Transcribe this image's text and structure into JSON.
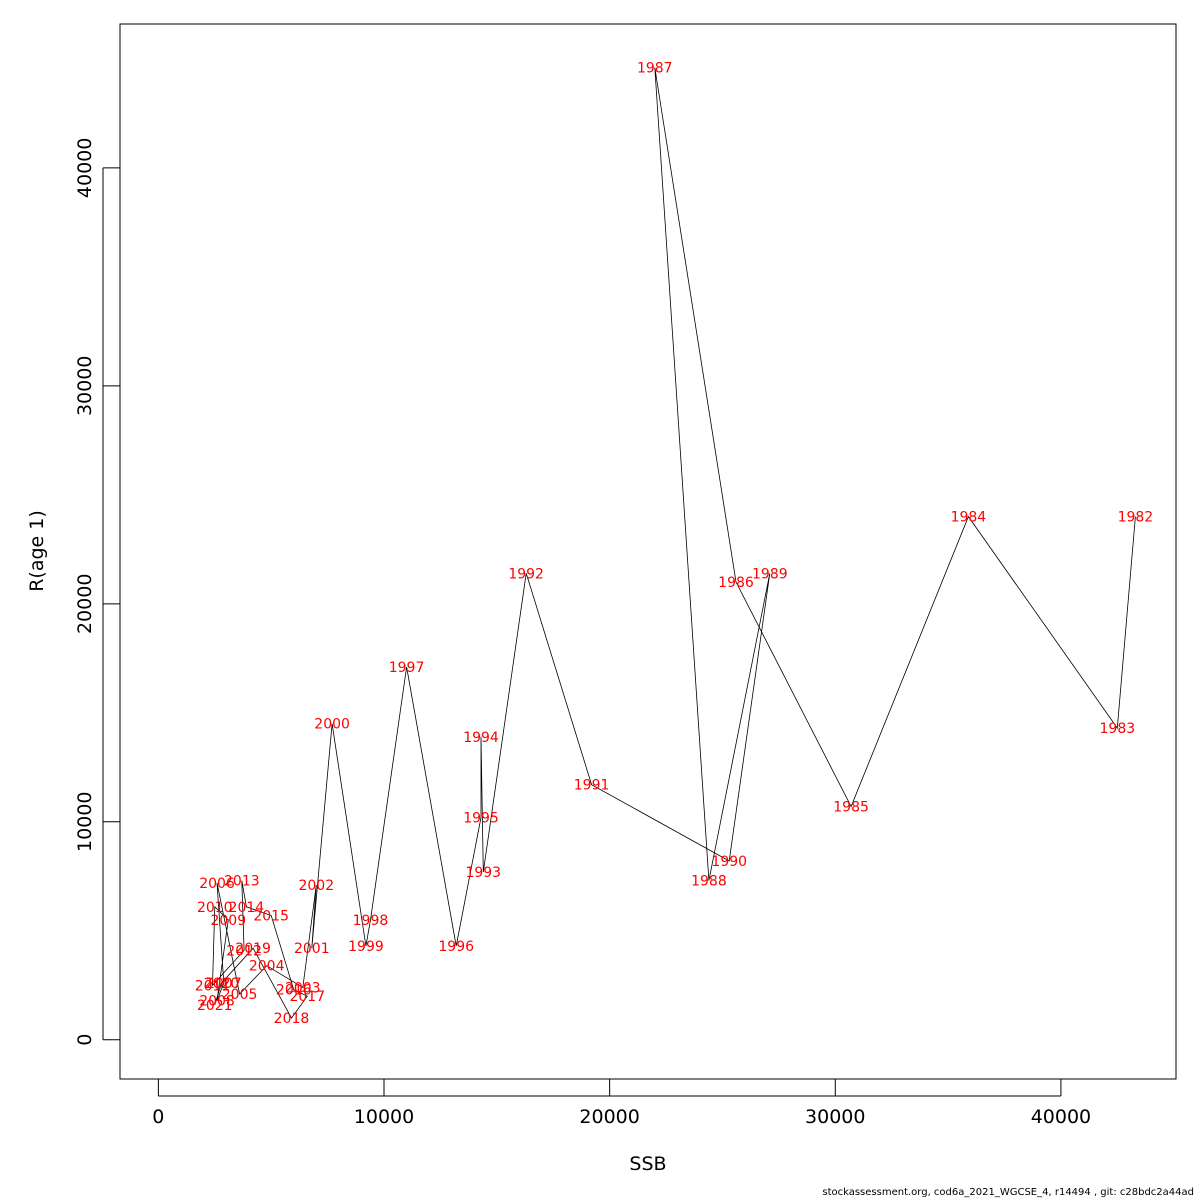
{
  "chart_data": {
    "type": "line",
    "title": "",
    "xlabel": "SSB",
    "ylabel": "R(age 1)",
    "xlim": [
      -1700,
      45100
    ],
    "ylim": [
      -1800,
      46600
    ],
    "xticks": [
      0,
      10000,
      20000,
      30000,
      40000
    ],
    "yticks": [
      0,
      10000,
      20000,
      30000,
      40000
    ],
    "grid": false,
    "label_color": "#ff0000",
    "line_color": "#000000",
    "points": [
      {
        "label": "1982",
        "x": 43300,
        "y": 24000
      },
      {
        "label": "1983",
        "x": 42500,
        "y": 14300
      },
      {
        "label": "1984",
        "x": 35900,
        "y": 24000
      },
      {
        "label": "1985",
        "x": 30700,
        "y": 10700
      },
      {
        "label": "1986",
        "x": 25600,
        "y": 21000
      },
      {
        "label": "1987",
        "x": 22000,
        "y": 44600
      },
      {
        "label": "1988",
        "x": 24400,
        "y": 7300
      },
      {
        "label": "1989",
        "x": 27100,
        "y": 21400
      },
      {
        "label": "1990",
        "x": 25300,
        "y": 8200
      },
      {
        "label": "1991",
        "x": 19200,
        "y": 11700
      },
      {
        "label": "1992",
        "x": 16300,
        "y": 21400
      },
      {
        "label": "1993",
        "x": 14400,
        "y": 7700
      },
      {
        "label": "1994",
        "x": 14300,
        "y": 13900
      },
      {
        "label": "1995",
        "x": 14300,
        "y": 10200
      },
      {
        "label": "1996",
        "x": 13200,
        "y": 4300
      },
      {
        "label": "1997",
        "x": 11000,
        "y": 17100
      },
      {
        "label": "1998",
        "x": 9400,
        "y": 5500
      },
      {
        "label": "1999",
        "x": 9200,
        "y": 4300
      },
      {
        "label": "2000",
        "x": 7700,
        "y": 14500
      },
      {
        "label": "2001",
        "x": 6800,
        "y": 4200
      },
      {
        "label": "2002",
        "x": 7000,
        "y": 7100
      },
      {
        "label": "2003",
        "x": 6400,
        "y": 2400
      },
      {
        "label": "2004",
        "x": 4800,
        "y": 3400
      },
      {
        "label": "2005",
        "x": 3600,
        "y": 2100
      },
      {
        "label": "2006",
        "x": 2600,
        "y": 7200
      },
      {
        "label": "2007",
        "x": 2900,
        "y": 2600
      },
      {
        "label": "2008",
        "x": 2600,
        "y": 1800
      },
      {
        "label": "2009",
        "x": 3100,
        "y": 5500
      },
      {
        "label": "2010",
        "x": 2500,
        "y": 6100
      },
      {
        "label": "2011",
        "x": 2400,
        "y": 2500
      },
      {
        "label": "2012",
        "x": 3800,
        "y": 4100
      },
      {
        "label": "2013",
        "x": 3700,
        "y": 7300
      },
      {
        "label": "2014",
        "x": 3900,
        "y": 6100
      },
      {
        "label": "2015",
        "x": 5000,
        "y": 5700
      },
      {
        "label": "2016",
        "x": 6000,
        "y": 2300
      },
      {
        "label": "2017",
        "x": 6600,
        "y": 2000
      },
      {
        "label": "2018",
        "x": 5900,
        "y": 1000
      },
      {
        "label": "2019",
        "x": 4200,
        "y": 4200
      },
      {
        "label": "2020",
        "x": 2800,
        "y": 2600
      },
      {
        "label": "2021",
        "x": 2500,
        "y": 1600
      }
    ]
  },
  "footer": "stockassessment.org, cod6a_2021_WGCSE_4, r14494 , git: c28bdc2a44ad"
}
